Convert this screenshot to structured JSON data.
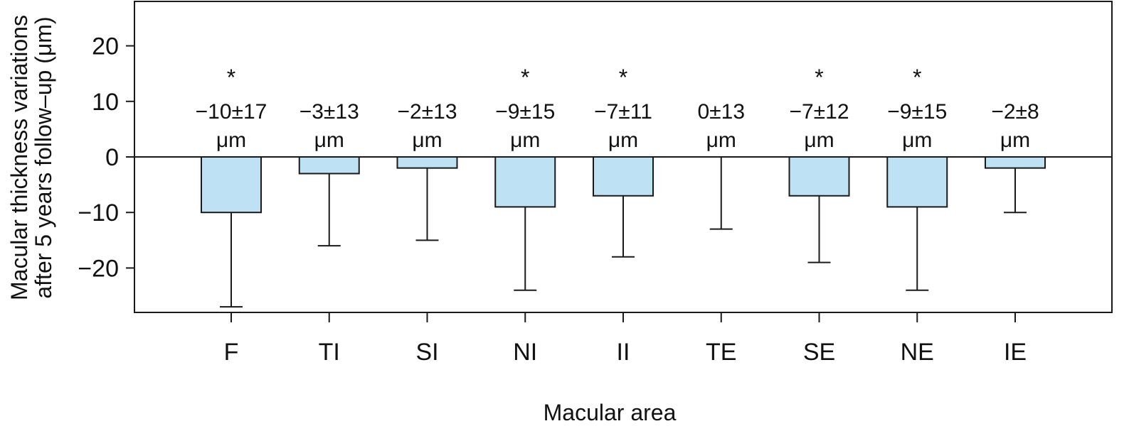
{
  "chart_data": {
    "type": "bar",
    "title": "",
    "xlabel": "Macular area",
    "ylabel": "Macular thickness variations after 5 years follow–up (μm)",
    "ylabel_lines": [
      "Macular thickness variations",
      "after 5 years follow–up (μm)"
    ],
    "ylim": [
      -28,
      28
    ],
    "yticks": [
      20,
      10,
      0,
      -10,
      -20
    ],
    "ytick_labels": [
      "20",
      "10",
      "0",
      "−10",
      "−20"
    ],
    "categories": [
      "F",
      "TI",
      "SI",
      "NI",
      "II",
      "TE",
      "SE",
      "NE",
      "IE"
    ],
    "values": [
      -10,
      -3,
      -2,
      -9,
      -7,
      0,
      -7,
      -9,
      -2
    ],
    "sd": [
      17,
      13,
      13,
      15,
      11,
      13,
      12,
      15,
      8
    ],
    "annotations": [
      "−10±17",
      "−3±13",
      "−2±13",
      "−9±15",
      "−7±11",
      "0±13",
      "−7±12",
      "−9±15",
      "−2±8"
    ],
    "unit": "μm",
    "significant": [
      true,
      false,
      false,
      true,
      true,
      false,
      true,
      true,
      false
    ],
    "significance_marker": "*",
    "grid": false,
    "bar_color": "#bfe1f4",
    "edge_color": "#1a1a1a"
  }
}
